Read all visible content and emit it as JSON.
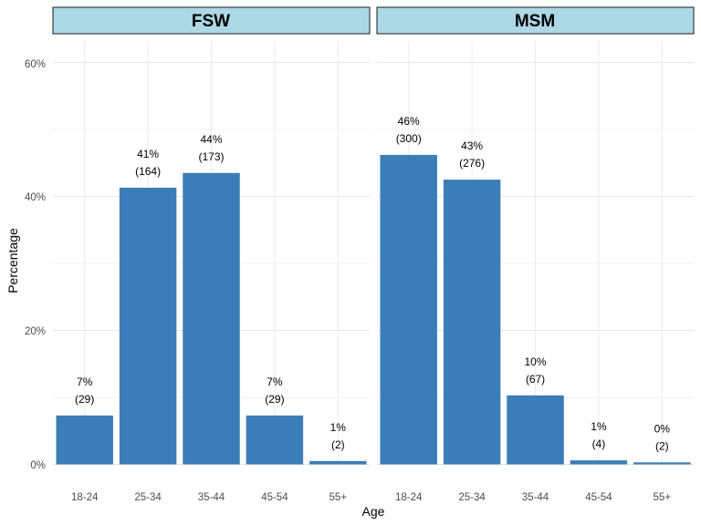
{
  "chart_data": {
    "type": "bar",
    "xlabel": "Age",
    "ylabel": "Percentage",
    "ylim": [
      0,
      0.6
    ],
    "yticks": [
      "0%",
      "20%",
      "40%",
      "60%"
    ],
    "grid": true,
    "bar_color": "#3A7DB8",
    "strip_color": "#ADD8E6",
    "categories": [
      "18-24",
      "25-34",
      "35-44",
      "45-54",
      "55+"
    ],
    "panels": [
      {
        "name": "FSW",
        "values": [
          0.07,
          0.41,
          0.44,
          0.07,
          0.01
        ],
        "percent_labels": [
          "7%",
          "41%",
          "44%",
          "7%",
          "1%"
        ],
        "count_labels": [
          "(29)",
          "(164)",
          "(173)",
          "(29)",
          "(2)"
        ],
        "bar_heights": [
          0.073,
          0.413,
          0.435,
          0.073,
          0.005
        ]
      },
      {
        "name": "MSM",
        "values": [
          0.46,
          0.43,
          0.1,
          0.01,
          0.0
        ],
        "percent_labels": [
          "46%",
          "43%",
          "10%",
          "1%",
          "0%"
        ],
        "count_labels": [
          "(300)",
          "(276)",
          "(67)",
          "(4)",
          "(2)"
        ],
        "bar_heights": [
          0.462,
          0.425,
          0.103,
          0.006,
          0.003
        ]
      }
    ]
  }
}
